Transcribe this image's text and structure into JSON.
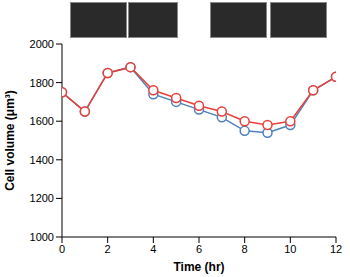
{
  "chart_data": {
    "type": "line",
    "x_label": "Time (hr)",
    "y_label": "Cell volume (μm³)",
    "x": [
      0,
      1,
      2,
      3,
      4,
      5,
      6,
      7,
      8,
      9,
      10,
      11,
      12
    ],
    "series": [
      {
        "color": "#4f81bd",
        "marker": "circle",
        "values": [
          1750,
          1650,
          1850,
          1880,
          1740,
          1700,
          1660,
          1620,
          1550,
          1540,
          1580,
          1760,
          1830
        ]
      },
      {
        "color": "#e8403a",
        "marker": "circle",
        "values": [
          1750,
          1650,
          1850,
          1880,
          1760,
          1720,
          1680,
          1650,
          1600,
          1580,
          1600,
          1760,
          1830
        ]
      }
    ],
    "xlim": [
      0,
      12
    ],
    "xticks": [
      0,
      2,
      4,
      6,
      8,
      10,
      12
    ],
    "ylim": [
      1000,
      2000
    ],
    "yticks": [
      1000,
      1200,
      1400,
      1600,
      1800,
      2000
    ],
    "grid": false
  }
}
